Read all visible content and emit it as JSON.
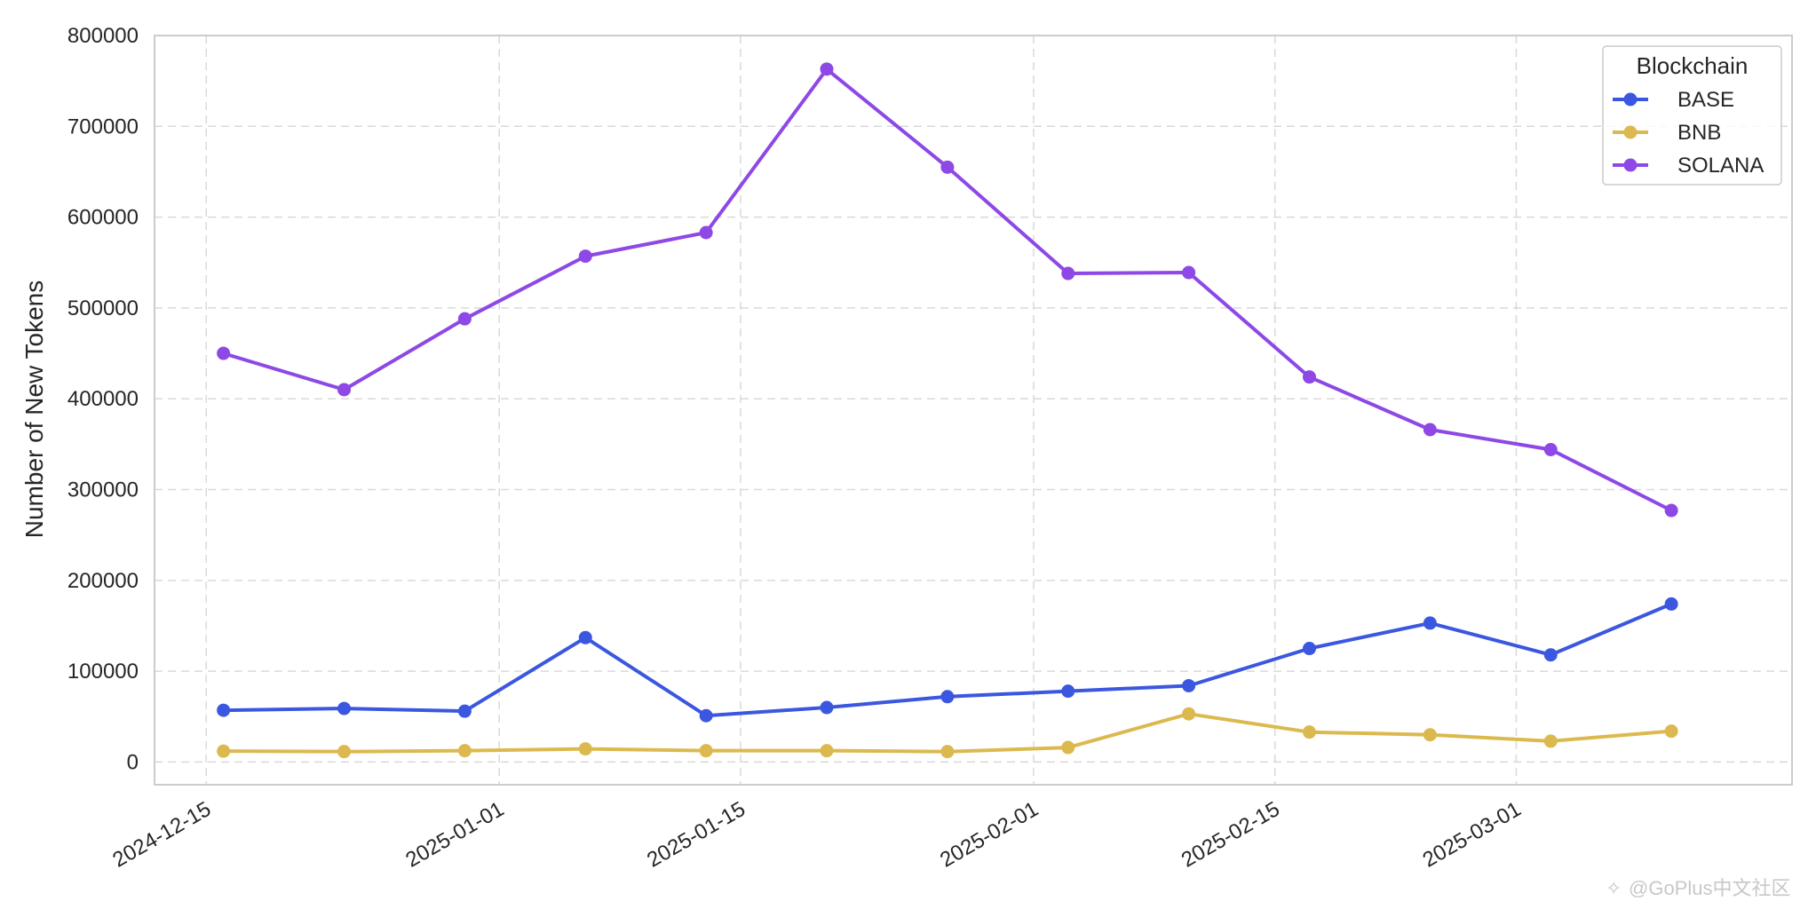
{
  "chart_data": {
    "type": "line",
    "title": "",
    "xlabel": "",
    "ylabel": "Number of New Tokens",
    "x": [
      "2024-12-16",
      "2024-12-23",
      "2024-12-30",
      "2025-01-06",
      "2025-01-13",
      "2025-01-20",
      "2025-01-27",
      "2025-02-03",
      "2025-02-10",
      "2025-02-17",
      "2025-02-24",
      "2025-03-03",
      "2025-03-10"
    ],
    "x_ticks": [
      "2024-12-15",
      "2025-01-01",
      "2025-01-15",
      "2025-02-01",
      "2025-02-15",
      "2025-03-01"
    ],
    "xlim": [
      "2024-12-12",
      "2025-03-17"
    ],
    "y_ticks": [
      0,
      100000,
      200000,
      300000,
      400000,
      500000,
      600000,
      700000,
      800000
    ],
    "y_tick_labels": [
      "0",
      "100000",
      "200000",
      "300000",
      "400000",
      "500000",
      "600000",
      "700000",
      "800000"
    ],
    "ylim": [
      -25000,
      800000
    ],
    "grid": true,
    "legend": {
      "title": "Blockchain",
      "placement": "top-right"
    },
    "series": [
      {
        "name": "BASE",
        "color": "#3b57e0",
        "values": [
          57000,
          59000,
          56000,
          137000,
          51000,
          60000,
          72000,
          78000,
          84000,
          125000,
          153000,
          118000,
          174000
        ]
      },
      {
        "name": "BNB",
        "color": "#dcb94f",
        "values": [
          12000,
          11500,
          12500,
          14500,
          12500,
          12500,
          11500,
          16000,
          53000,
          33000,
          30000,
          23000,
          34000
        ]
      },
      {
        "name": "SOLANA",
        "color": "#8d48e6",
        "values": [
          450000,
          410000,
          488000,
          557000,
          583000,
          763000,
          655000,
          538000,
          539000,
          424000,
          366000,
          344000,
          277000
        ]
      }
    ]
  },
  "watermark": "@GoPlus中文社区"
}
